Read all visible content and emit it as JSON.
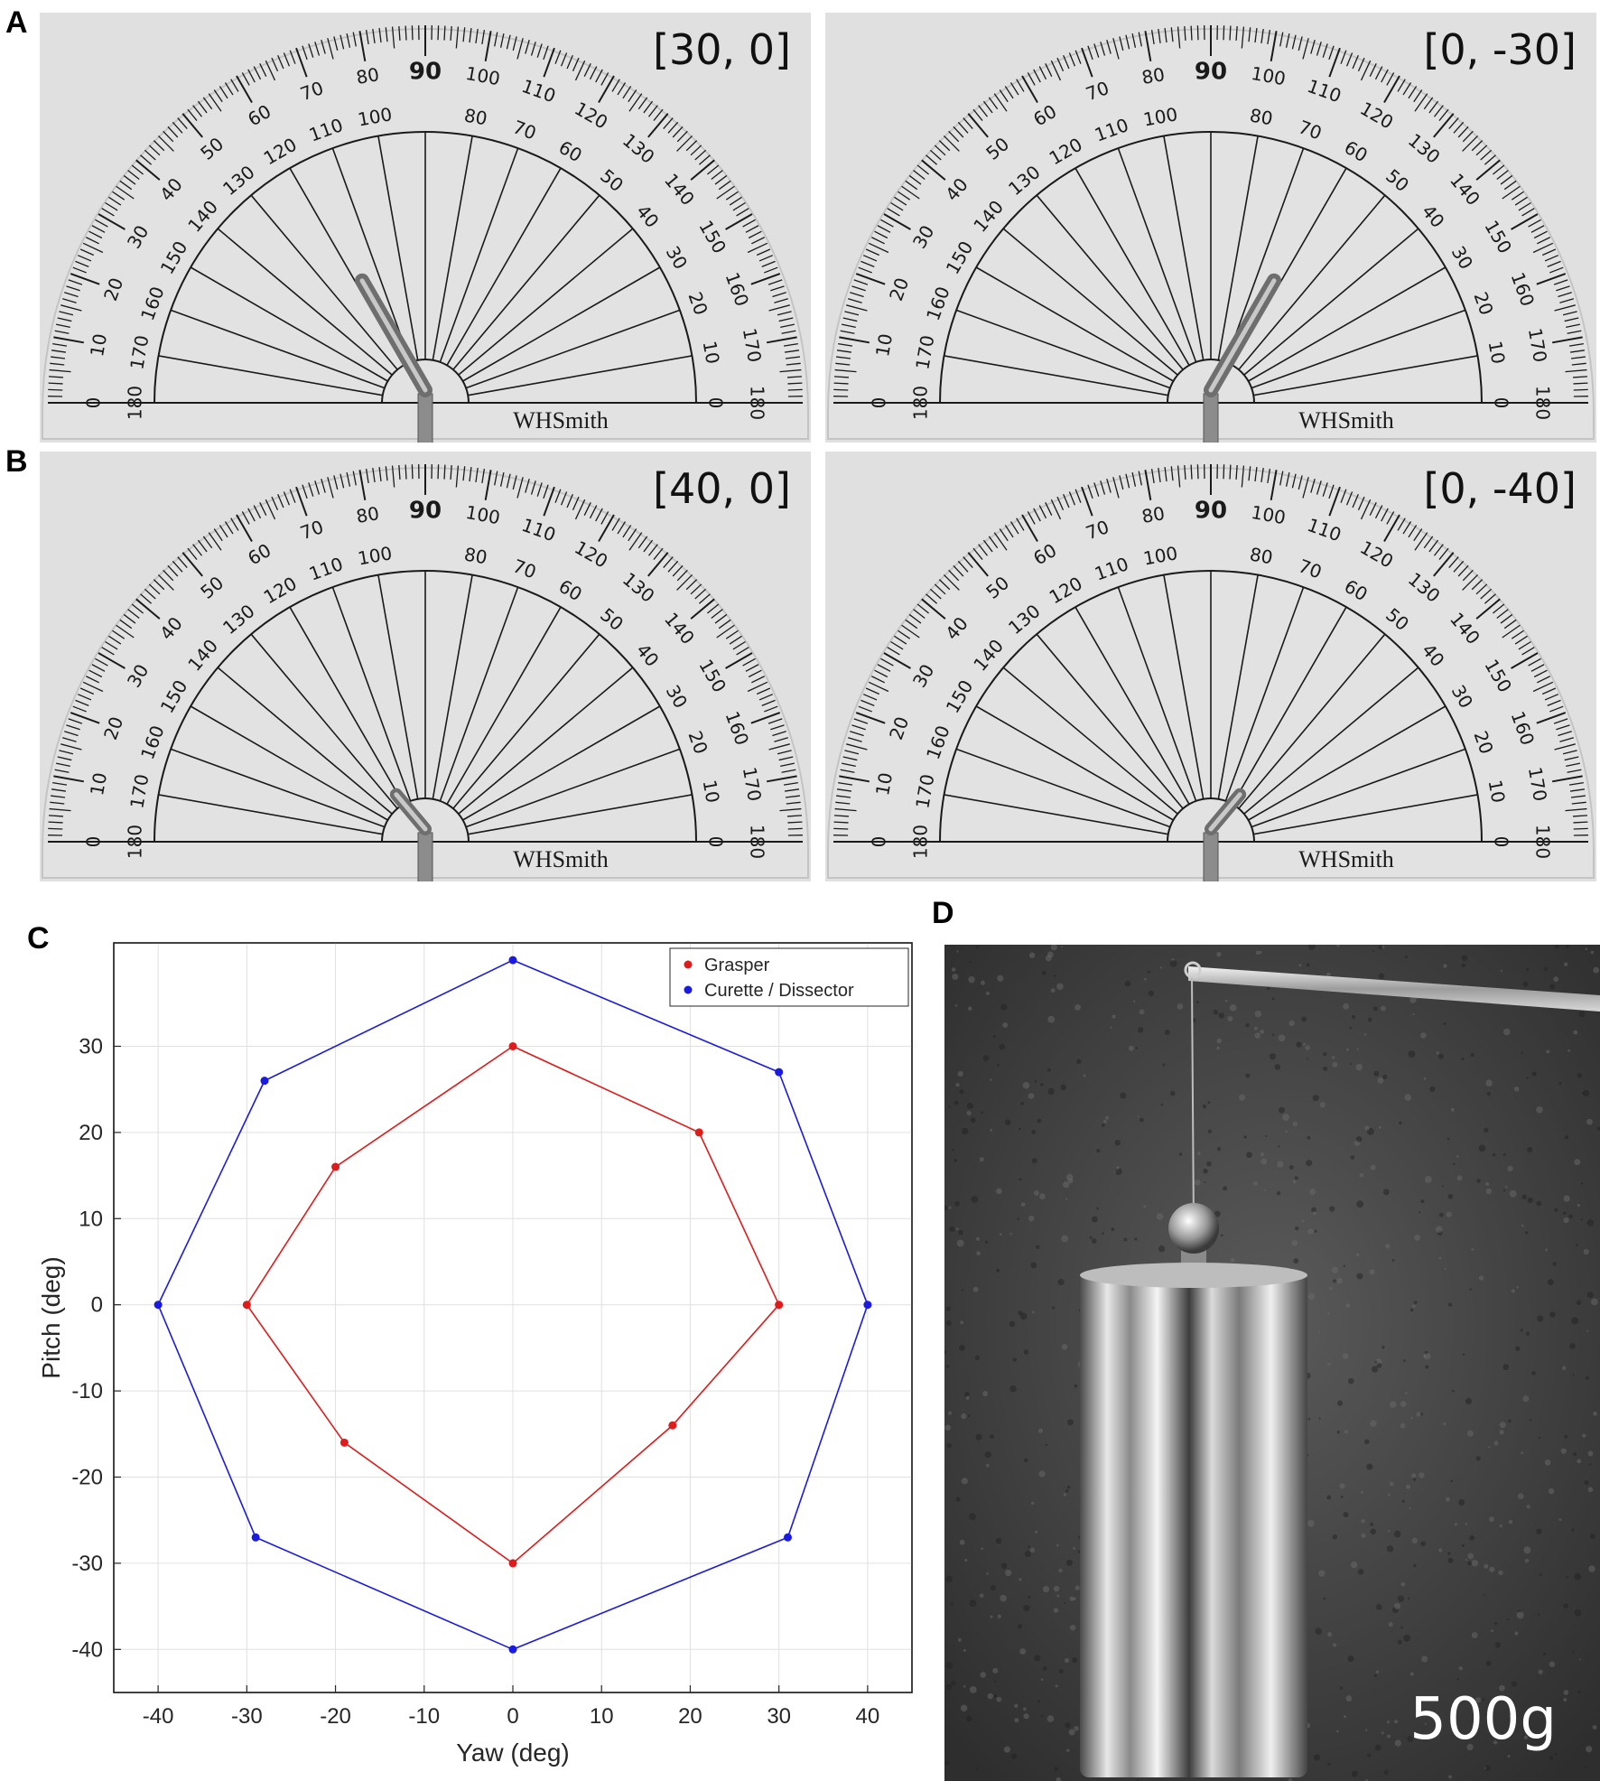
{
  "panels": {
    "a": "A",
    "b": "B",
    "c": "C",
    "d": "D"
  },
  "photos": [
    {
      "id": "a-left",
      "label": "[30, 0]",
      "brand": "WHSmith",
      "tool_angle": 60
    },
    {
      "id": "a-right",
      "label": "[0, -30]",
      "brand": "WHSmith",
      "tool_angle": 120
    },
    {
      "id": "b-left",
      "label": "[40, 0]",
      "brand": "WHSmith",
      "tool_angle": 50
    },
    {
      "id": "b-right",
      "label": "[0, -40]",
      "brand": "WHSmith",
      "tool_angle": 130
    }
  ],
  "protractor": {
    "outer_labels": [
      "0",
      "10",
      "20",
      "30",
      "40",
      "50",
      "60",
      "70",
      "80",
      "90",
      "100",
      "110",
      "120",
      "130",
      "140",
      "150",
      "160",
      "170",
      "180"
    ],
    "inner_labels": [
      "180",
      "170",
      "160",
      "150",
      "140",
      "130",
      "120",
      "110",
      "100",
      "",
      "80",
      "70",
      "60",
      "50",
      "40",
      "30",
      "20",
      "10",
      "0"
    ]
  },
  "weight": {
    "label": "500g"
  },
  "chart_data": {
    "type": "line",
    "title": "",
    "xlabel": "Yaw (deg)",
    "ylabel": "Pitch (deg)",
    "xlim": [
      -45,
      45
    ],
    "ylim": [
      -45,
      42
    ],
    "xticks": [
      -40,
      -30,
      -20,
      -10,
      0,
      10,
      20,
      30,
      40
    ],
    "yticks": [
      -40,
      -30,
      -20,
      -10,
      0,
      10,
      20,
      30
    ],
    "grid": true,
    "legend_position": "top-right",
    "series": [
      {
        "name": "Grasper",
        "color": "#e01b1b",
        "points": [
          [
            0,
            30
          ],
          [
            21,
            20
          ],
          [
            30,
            0
          ],
          [
            18,
            -14
          ],
          [
            0,
            -30
          ],
          [
            -19,
            -16
          ],
          [
            -30,
            0
          ],
          [
            -20,
            16
          ],
          [
            0,
            30
          ]
        ]
      },
      {
        "name": "Curette / Dissector",
        "color": "#1a1ae0",
        "points": [
          [
            0,
            40
          ],
          [
            30,
            27
          ],
          [
            40,
            0
          ],
          [
            31,
            -27
          ],
          [
            0,
            -40
          ],
          [
            -29,
            -27
          ],
          [
            -40,
            0
          ],
          [
            -28,
            26
          ],
          [
            0,
            40
          ]
        ]
      }
    ]
  }
}
